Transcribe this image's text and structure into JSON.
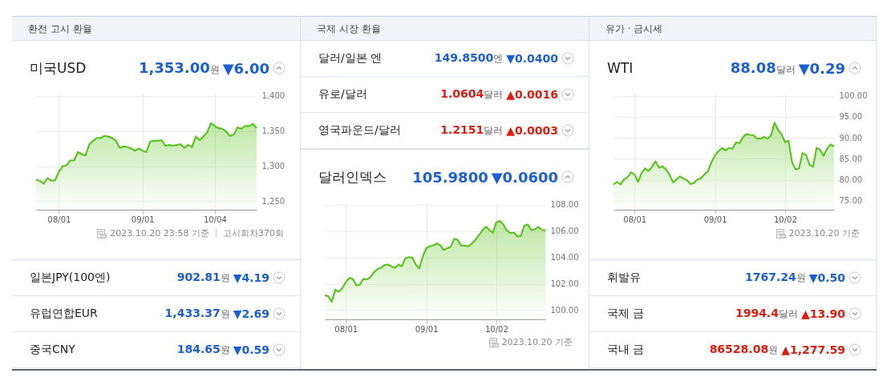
{
  "chart_data": [
    {
      "type": "area",
      "title": "환전 고시 환율",
      "subtitle": "미국USD",
      "annotations": [
        "1,353.00원",
        "▼6.00",
        "2023.10.20 23:58 기준",
        "고시회차370회"
      ],
      "color": "#5cc41e",
      "grid": true,
      "categories": [
        null,
        null,
        null,
        null,
        null,
        null,
        "08/01",
        null,
        null,
        null,
        null,
        null,
        null,
        null,
        null,
        null,
        null,
        null,
        null,
        null,
        null,
        null,
        null,
        null,
        null,
        null,
        null,
        null,
        "09/01",
        null,
        null,
        null,
        null,
        null,
        null,
        null,
        null,
        null,
        null,
        null,
        null,
        null,
        null,
        null,
        null,
        null,
        null,
        "10/04",
        null,
        null,
        null,
        null,
        null,
        null,
        null,
        null,
        null,
        null,
        null
      ],
      "values": [
        1281,
        1279,
        1275,
        1283,
        1279,
        1280,
        1292,
        1300,
        1301,
        1308,
        1308,
        1320,
        1317,
        1315,
        1331,
        1336,
        1340,
        1340,
        1343,
        1342,
        1340,
        1336,
        1326,
        1328,
        1327,
        1325,
        1322,
        1325,
        1322,
        1320,
        1335,
        1336,
        1336,
        1337,
        1329,
        1330,
        1329,
        1330,
        1331,
        1326,
        1330,
        1327,
        1342,
        1337,
        1342,
        1348,
        1361,
        1357,
        1354,
        1353,
        1349,
        1343,
        1345,
        1355,
        1353,
        1357,
        1357,
        1360,
        1354
      ],
      "ylim": [
        1238,
        1403
      ],
      "yticks": [
        {
          "value": 1250,
          "label": "1,250"
        },
        {
          "value": 1300,
          "label": "1,300"
        },
        {
          "value": 1350,
          "label": "1,350"
        },
        {
          "value": 1400,
          "label": "1,400"
        }
      ]
    },
    {
      "type": "other",
      "annotations": [
        "일본JPY(100엔)",
        "902.81원",
        "▼4.19",
        "유럽연합EUR",
        "1,433.37원",
        "▼2.69",
        "중국CNY",
        "184.65원",
        "▼0.59"
      ],
      "colors": [
        "#1a5ed8",
        "#1a5ed8",
        "#1a5ed8"
      ]
    },
    {
      "type": "other",
      "title": "국제 시장 환율",
      "annotations": [
        "달러/일본 엔",
        "149.8500엔",
        "▼0.0400",
        "유로/달러",
        "1.0604달러",
        "▲0.0016",
        "영국파운드/달러",
        "1.2151달러",
        "▲0.0003"
      ],
      "colors": [
        "#1a5ed8",
        "#e4190b",
        "#e4190b"
      ]
    },
    {
      "type": "area",
      "subtitle": "달러인덱스",
      "annotations": [
        "105.9800",
        "▼0.0600",
        "2023.10.20 기준"
      ],
      "color": "#5cc41e",
      "grid": true,
      "categories": [
        null,
        null,
        null,
        null,
        null,
        null,
        "08/01",
        null,
        null,
        null,
        null,
        null,
        null,
        null,
        null,
        null,
        null,
        null,
        null,
        null,
        null,
        null,
        null,
        null,
        null,
        null,
        null,
        null,
        null,
        "09/01",
        null,
        null,
        null,
        null,
        null,
        null,
        null,
        null,
        null,
        null,
        null,
        null,
        null,
        null,
        null,
        null,
        null,
        null,
        null,
        "10/02",
        null,
        null,
        null,
        null,
        null,
        null,
        null,
        null,
        null,
        null,
        null,
        null,
        null,
        null
      ],
      "values": [
        101.13,
        101.05,
        100.64,
        101.55,
        101.4,
        101.67,
        102.12,
        102.43,
        102.37,
        101.88,
        101.92,
        102.37,
        102.33,
        102.49,
        102.85,
        103.11,
        103.2,
        103.4,
        103.46,
        103.32,
        103.2,
        103.46,
        103.32,
        103.92,
        104.02,
        103.98,
        103.46,
        103.15,
        104.08,
        104.7,
        104.85,
        104.91,
        105.05,
        104.91,
        104.56,
        104.7,
        104.8,
        105.42,
        105.32,
        104.91,
        104.89,
        104.85,
        105.05,
        105.32,
        105.67,
        106.04,
        106.33,
        106.08,
        105.88,
        106.66,
        106.76,
        106.49,
        106.04,
        105.84,
        105.88,
        105.59,
        105.63,
        106.41,
        106.49,
        106.08,
        106.12,
        106.31,
        106.08,
        106.04
      ],
      "ylim": [
        99.3,
        108.1
      ],
      "yticks": [
        {
          "value": 100,
          "label": "100.00"
        },
        {
          "value": 102,
          "label": "102.00"
        },
        {
          "value": 104,
          "label": "104.00"
        },
        {
          "value": 106,
          "label": "106.00"
        },
        {
          "value": 108,
          "label": "108.00"
        }
      ]
    },
    {
      "type": "area",
      "title": "유가 · 금시세",
      "subtitle": "WTI",
      "annotations": [
        "88.08달러",
        "▼0.29",
        "2023.10.20 기준"
      ],
      "color": "#5cc41e",
      "grid": true,
      "categories": [
        null,
        null,
        null,
        null,
        null,
        null,
        "08/01",
        null,
        null,
        null,
        null,
        null,
        null,
        null,
        null,
        null,
        null,
        null,
        null,
        null,
        null,
        null,
        null,
        null,
        null,
        null,
        null,
        null,
        null,
        "09/01",
        null,
        null,
        null,
        null,
        null,
        null,
        null,
        null,
        null,
        null,
        null,
        null,
        null,
        null,
        null,
        null,
        null,
        null,
        null,
        "10/02",
        null,
        null,
        null,
        null,
        null,
        null,
        null,
        null,
        null,
        null,
        null,
        null,
        null,
        null
      ],
      "values": [
        78.9,
        79.5,
        78.9,
        80.1,
        80.6,
        81.8,
        81.3,
        79.5,
        81.6,
        82.7,
        82.1,
        83.1,
        84.4,
        82.9,
        83.2,
        82.5,
        81.2,
        79.4,
        80.1,
        80.8,
        80.3,
        79.9,
        79.0,
        79.3,
        80.1,
        80.4,
        81.3,
        82.1,
        84.2,
        85.9,
        86.8,
        87.6,
        87.0,
        87.6,
        87.4,
        88.9,
        88.7,
        90.2,
        90.9,
        90.7,
        90.6,
        89.8,
        89.8,
        90.2,
        89.8,
        90.6,
        93.6,
        91.9,
        90.8,
        89.0,
        89.3,
        84.2,
        82.5,
        82.7,
        86.4,
        85.9,
        83.6,
        83.1,
        87.6,
        87.1,
        85.7,
        87.4,
        88.4,
        88.0
      ],
      "ylim": [
        72.9,
        100.5
      ],
      "yticks": [
        {
          "value": 75,
          "label": "75.00"
        },
        {
          "value": 80,
          "label": "80.00"
        },
        {
          "value": 85,
          "label": "85.00"
        },
        {
          "value": 90,
          "label": "90.00"
        },
        {
          "value": 95,
          "label": "95.00"
        },
        {
          "value": 100,
          "label": "100.00"
        }
      ]
    },
    {
      "type": "other",
      "annotations": [
        "휘발유",
        "1767.24원",
        "▼0.50",
        "국제 금",
        "1994.4달러",
        "▲13.90",
        "국내 금",
        "86528.08원",
        "▲1,277.59"
      ],
      "colors": [
        "#1a5ed8",
        "#e4190b",
        "#e4190b"
      ]
    }
  ]
}
